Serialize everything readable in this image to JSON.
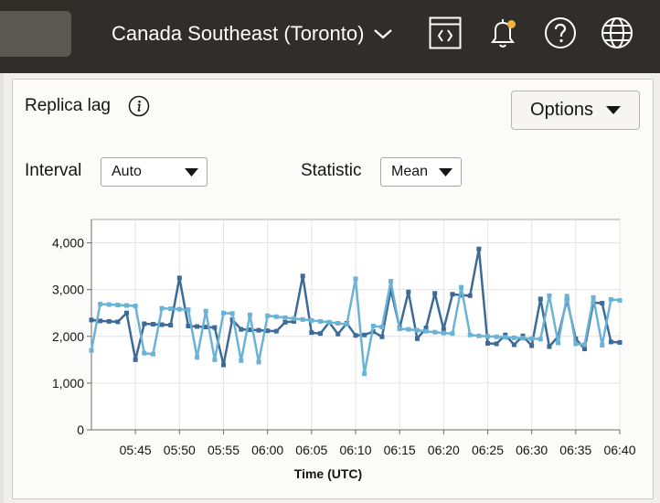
{
  "header": {
    "region_label": "Canada Southeast (Toronto)",
    "icons": [
      "code-editor-icon",
      "bell-icon",
      "help-icon",
      "globe-icon"
    ],
    "notification_dot_color": "#f0b33c",
    "background_color": "#312d2a"
  },
  "panel": {
    "title": "Replica lag",
    "options_label": "Options",
    "interval_label": "Interval",
    "interval_value": "Auto",
    "statistic_label": "Statistic",
    "statistic_value": "Mean"
  },
  "chart_data": {
    "type": "line",
    "title": "",
    "xlabel": "Time (UTC)",
    "ylabel": "",
    "ylim": [
      0,
      4500
    ],
    "y_ticks": [
      0,
      1000,
      2000,
      3000,
      4000
    ],
    "y_tick_labels": [
      "0",
      "1,000",
      "2,000",
      "3,000",
      "4,000"
    ],
    "x_tick_labels": [
      "05:45",
      "05:50",
      "05:55",
      "06:00",
      "06:05",
      "06:10",
      "06:15",
      "06:20",
      "06:25",
      "06:30",
      "06:35",
      "06:40"
    ],
    "x_range_minutes": [
      40.0,
      100.0
    ],
    "grid": true,
    "series": [
      {
        "color": "#3d6a96",
        "x": [
          40.0,
          41.0,
          42.0,
          43.0,
          44.0,
          45.0,
          46.0,
          47.0,
          48.0,
          49.0,
          50.0,
          51.0,
          52.0,
          53.0,
          54.0,
          55.0,
          56.0,
          57.0,
          58.0,
          59.0,
          60.0,
          61.0,
          62.0,
          63.0,
          64.0,
          65.0,
          66.0,
          67.0,
          68.0,
          69.0,
          70.0,
          71.0,
          72.0,
          73.0,
          74.0,
          75.0,
          76.0,
          77.0,
          78.0,
          79.0,
          80.0,
          81.0,
          82.0,
          83.0,
          84.0,
          85.0,
          86.0,
          87.0,
          88.0,
          89.0,
          90.0,
          91.0,
          92.0,
          93.0,
          94.0,
          95.0,
          96.0,
          97.0,
          98.0,
          99.0,
          100.0
        ],
        "values": [
          2350,
          2330,
          2320,
          2310,
          2500,
          1500,
          2270,
          2260,
          2250,
          2240,
          3250,
          2220,
          2210,
          2200,
          2190,
          1390,
          2360,
          2150,
          2140,
          2130,
          2120,
          2110,
          2300,
          2320,
          3290,
          2080,
          2060,
          2300,
          2050,
          2280,
          2020,
          2030,
          2100,
          1990,
          3000,
          2180,
          2950,
          1950,
          2180,
          2920,
          2150,
          2900,
          2880,
          2870,
          3870,
          1850,
          1840,
          2030,
          1820,
          2010,
          1800,
          2800,
          1780,
          2000,
          2780,
          1950,
          1730,
          2720,
          2710,
          1880,
          1870
        ]
      },
      {
        "color": "#6bb3d6",
        "x": [
          40.0,
          41.0,
          42.0,
          43.0,
          44.0,
          45.0,
          46.0,
          47.0,
          48.0,
          49.0,
          50.0,
          51.0,
          52.0,
          53.0,
          54.0,
          55.0,
          56.0,
          57.0,
          58.0,
          59.0,
          60.0,
          61.0,
          62.0,
          63.0,
          64.0,
          65.0,
          66.0,
          67.0,
          68.0,
          69.0,
          70.0,
          71.0,
          72.0,
          73.0,
          74.0,
          75.0,
          76.0,
          77.0,
          78.0,
          79.0,
          80.0,
          81.0,
          82.0,
          83.0,
          84.0,
          85.0,
          86.0,
          87.0,
          88.0,
          89.0,
          90.0,
          91.0,
          92.0,
          93.0,
          94.0,
          95.0,
          96.0,
          97.0,
          98.0,
          99.0,
          100.0
        ],
        "values": [
          1700,
          2690,
          2680,
          2670,
          2660,
          2650,
          1640,
          1620,
          2600,
          2590,
          2580,
          2570,
          1550,
          2540,
          1500,
          2500,
          2490,
          1480,
          2460,
          1450,
          2440,
          2420,
          2400,
          2380,
          2360,
          2340,
          2320,
          2300,
          2280,
          2260,
          3230,
          1200,
          2220,
          2200,
          3180,
          2160,
          2150,
          2130,
          2110,
          2090,
          2070,
          2060,
          3050,
          2030,
          2010,
          2000,
          1990,
          1980,
          1970,
          1960,
          1950,
          1940,
          2870,
          1860,
          2860,
          1840,
          1820,
          2830,
          1810,
          2790,
          2770
        ]
      }
    ]
  }
}
